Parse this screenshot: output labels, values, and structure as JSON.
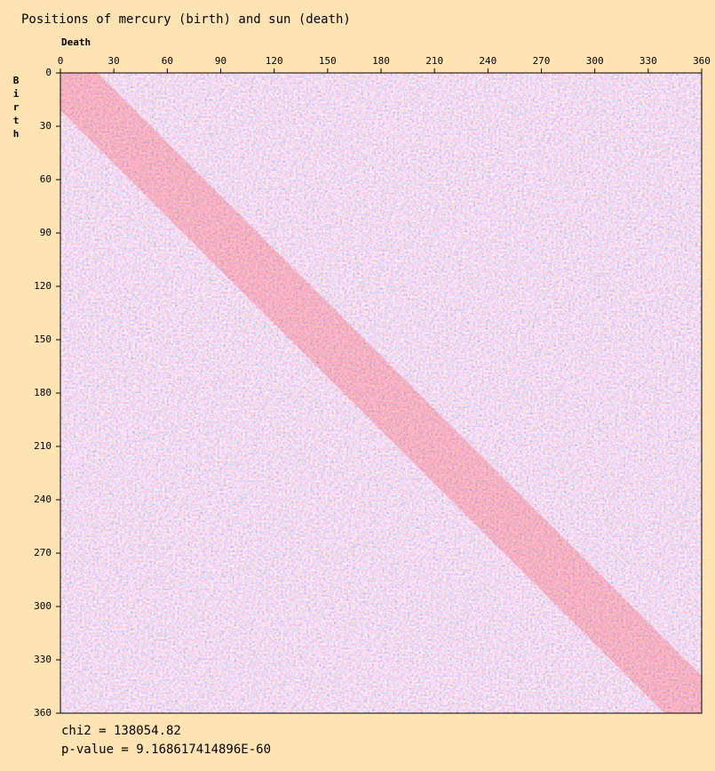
{
  "chart_data": {
    "type": "heatmap",
    "title": "Positions of mercury (birth) and sun (death)",
    "x_label": "Death",
    "y_label": "Birth",
    "xlim": [
      0,
      360
    ],
    "ylim": [
      0,
      360
    ],
    "xticks": [
      0,
      30,
      60,
      90,
      120,
      150,
      180,
      210,
      240,
      270,
      300,
      330,
      360
    ],
    "yticks": [
      0,
      30,
      60,
      90,
      120,
      150,
      180,
      210,
      240,
      270,
      300,
      330,
      360
    ],
    "annotations": [
      "chi2 = 138054.82",
      "p-value = 9.168617414896E-60"
    ]
  }
}
